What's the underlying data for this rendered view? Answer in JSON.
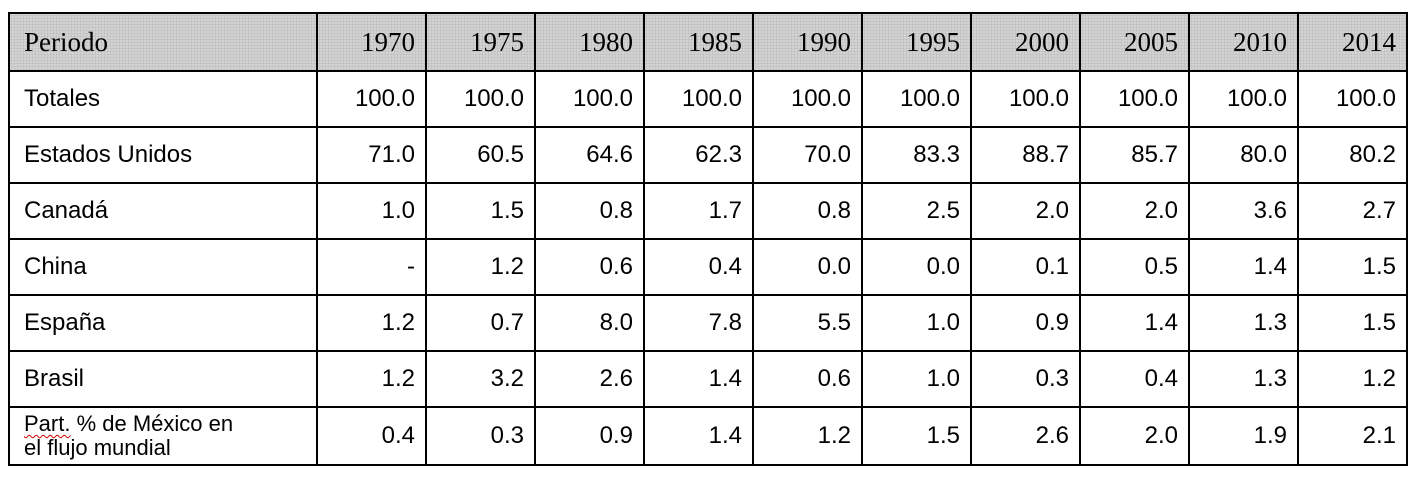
{
  "table": {
    "header_label": "Periodo",
    "years": [
      "1970",
      "1975",
      "1980",
      "1985",
      "1990",
      "1995",
      "2000",
      "2005",
      "2010",
      "2014"
    ],
    "rows": [
      {
        "label": "Totales",
        "values": [
          "100.0",
          "100.0",
          "100.0",
          "100.0",
          "100.0",
          "100.0",
          "100.0",
          "100.0",
          "100.0",
          "100.0"
        ]
      },
      {
        "label": "Estados Unidos",
        "values": [
          "71.0",
          "60.5",
          "64.6",
          "62.3",
          "70.0",
          "83.3",
          "88.7",
          "85.7",
          "80.0",
          "80.2"
        ]
      },
      {
        "label": "Canadá",
        "values": [
          "1.0",
          "1.5",
          "0.8",
          "1.7",
          "0.8",
          "2.5",
          "2.0",
          "2.0",
          "3.6",
          "2.7"
        ]
      },
      {
        "label": "China",
        "values": [
          "-",
          "1.2",
          "0.6",
          "0.4",
          "0.0",
          "0.0",
          "0.1",
          "0.5",
          "1.4",
          "1.5"
        ]
      },
      {
        "label": "España",
        "values": [
          "1.2",
          "0.7",
          "8.0",
          "7.8",
          "5.5",
          "1.0",
          "0.9",
          "1.4",
          "1.3",
          "1.5"
        ]
      },
      {
        "label": "Brasil",
        "values": [
          "1.2",
          "3.2",
          "2.6",
          "1.4",
          "0.6",
          "1.0",
          "0.3",
          "0.4",
          "1.3",
          "1.2"
        ]
      }
    ],
    "last_row": {
      "label_part1": "Part.",
      "label_part2": " % de México en",
      "label_part3": "el flujo mundial",
      "values": [
        "0.4",
        "0.3",
        "0.9",
        "1.4",
        "1.2",
        "1.5",
        "2.6",
        "2.0",
        "1.9",
        "2.1"
      ]
    }
  }
}
